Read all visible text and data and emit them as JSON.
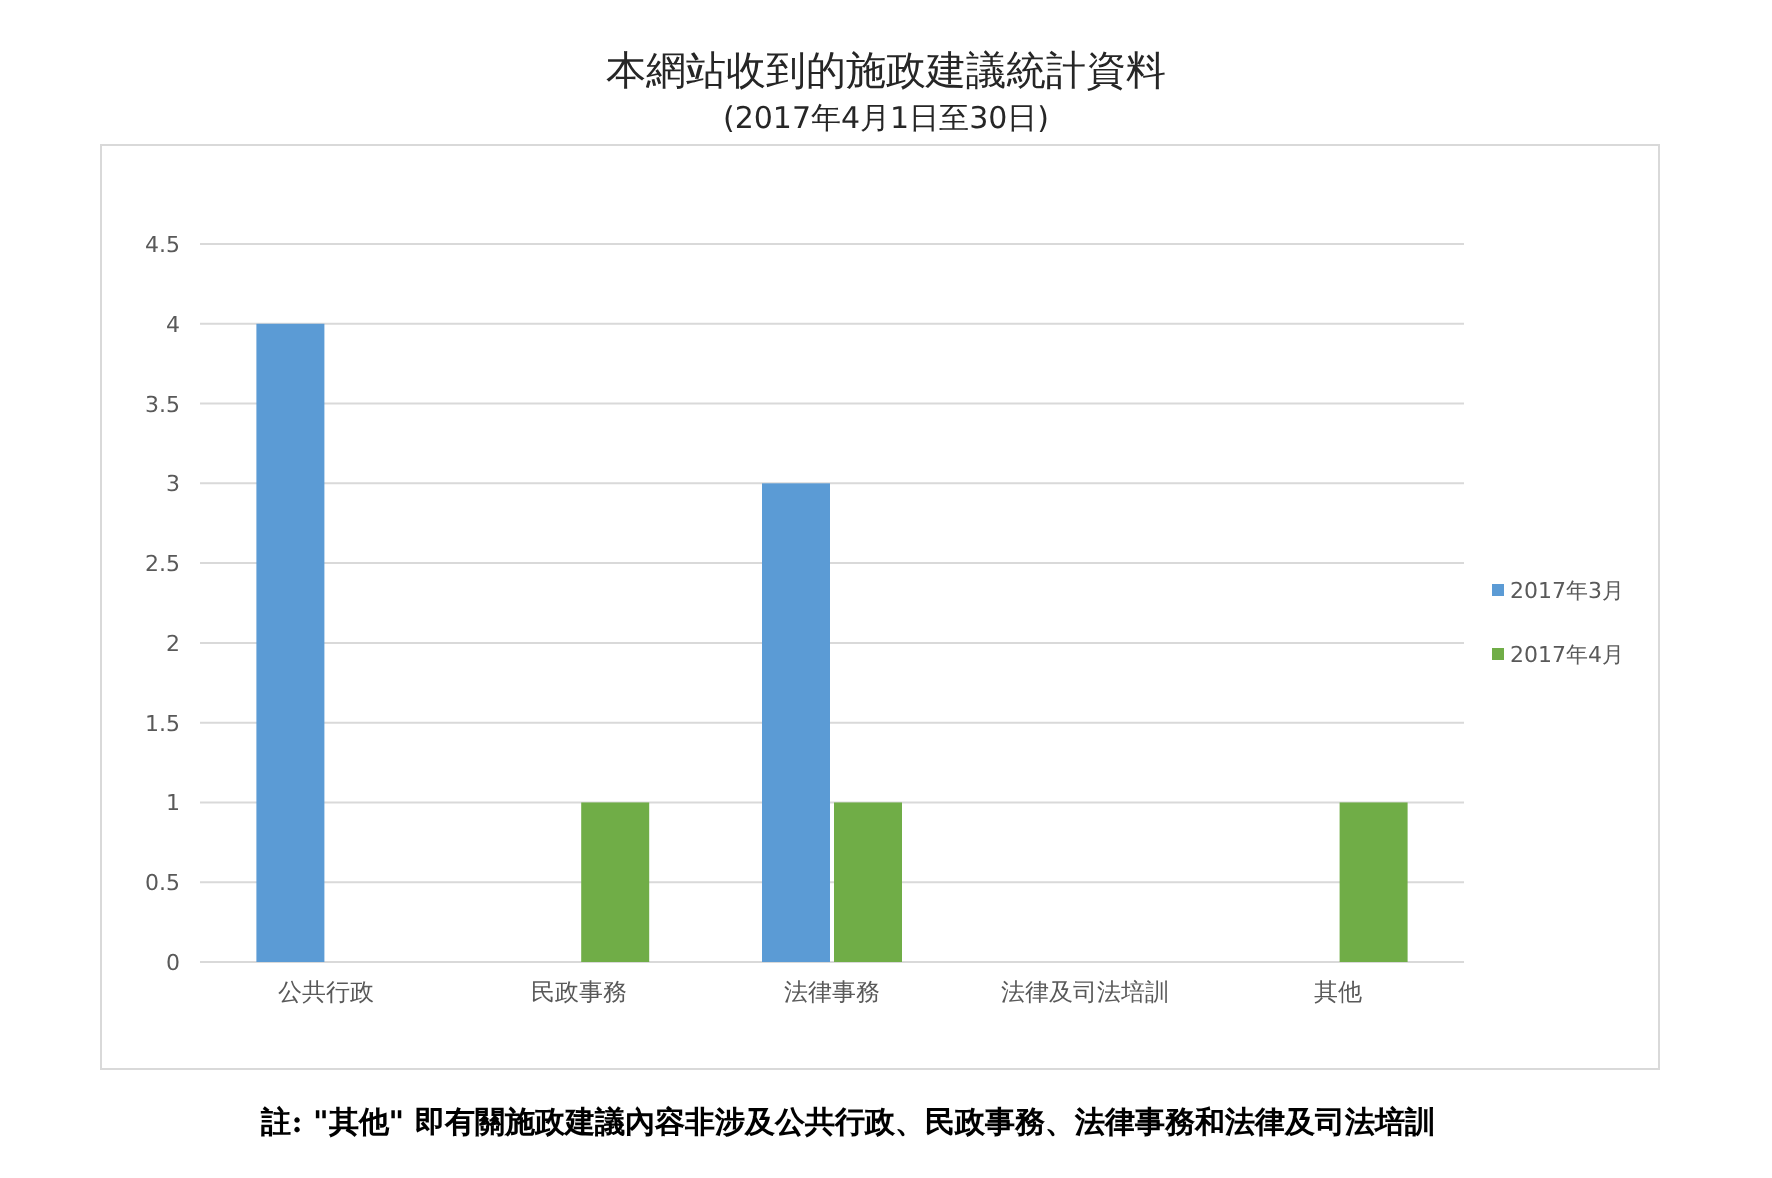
{
  "chart_data": {
    "type": "bar",
    "title": "本網站收到的施政建議統計資料",
    "subtitle": "(2017年4月1日至30日)",
    "categories": [
      "公共行政",
      "民政事務",
      "法律事務",
      "法律及司法培訓",
      "其他"
    ],
    "series": [
      {
        "name": "2017年3月",
        "color": "#5b9bd5",
        "values": [
          4,
          0,
          3,
          0,
          0
        ]
      },
      {
        "name": "2017年4月",
        "color": "#70ad47",
        "values": [
          0,
          1,
          1,
          0,
          1
        ]
      }
    ],
    "ylim": [
      0,
      4.5
    ],
    "yticks": [
      0,
      0.5,
      1,
      1.5,
      2,
      2.5,
      3,
      3.5,
      4,
      4.5
    ],
    "grid": "y",
    "legend": "right",
    "annotations": [
      "註: \"其他\" 即有關施政建議內容非涉及公共行政、民政事務、法律事務和法律及司法培訓"
    ]
  }
}
